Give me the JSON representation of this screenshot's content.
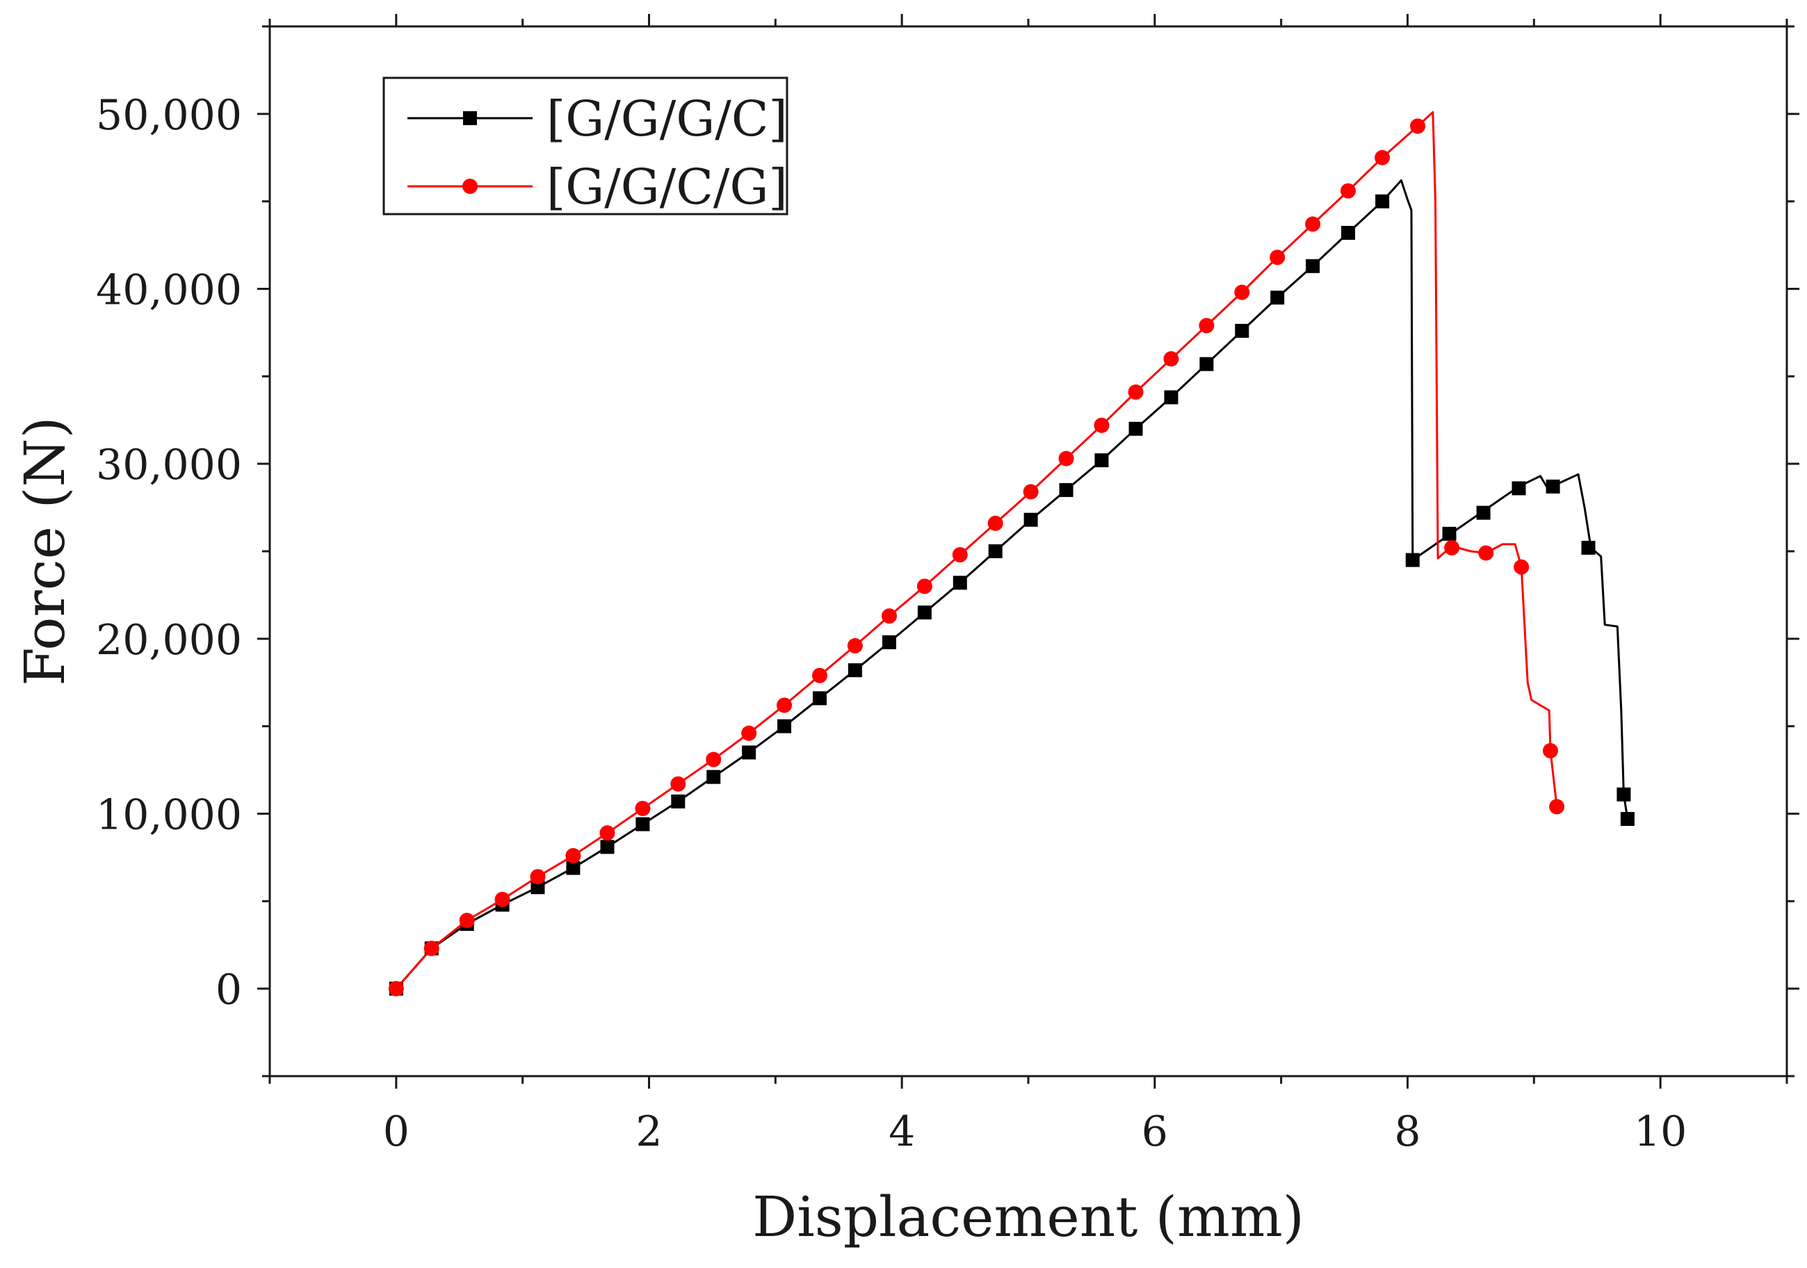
{
  "chart_data": {
    "type": "line",
    "title": "",
    "xlabel": "Displacement (mm)",
    "ylabel": "Force (N)",
    "xlim": [
      -1,
      11
    ],
    "ylim": [
      -5000,
      55000
    ],
    "x_ticks": [
      0,
      2,
      4,
      6,
      8,
      10
    ],
    "x_tick_labels": [
      "0",
      "2",
      "4",
      "6",
      "8",
      "10"
    ],
    "y_ticks": [
      0,
      10000,
      20000,
      30000,
      40000,
      50000
    ],
    "y_tick_labels": [
      "0",
      "10,000",
      "20,000",
      "30,000",
      "40,000",
      "50,000"
    ],
    "legend_position": "top-left",
    "series": [
      {
        "name": "[G/G/G/C]",
        "color": "#000000",
        "marker": "square",
        "line": [
          [
            0,
            0
          ],
          [
            0.28,
            2300
          ],
          [
            0.56,
            3700
          ],
          [
            0.84,
            4800
          ],
          [
            1.12,
            5800
          ],
          [
            1.4,
            6900
          ],
          [
            1.67,
            8100
          ],
          [
            1.95,
            9400
          ],
          [
            2.23,
            10700
          ],
          [
            2.51,
            12100
          ],
          [
            2.79,
            13500
          ],
          [
            3.07,
            15000
          ],
          [
            3.35,
            16600
          ],
          [
            3.63,
            18200
          ],
          [
            3.9,
            19800
          ],
          [
            4.18,
            21500
          ],
          [
            4.46,
            23200
          ],
          [
            4.74,
            25000
          ],
          [
            5.02,
            26800
          ],
          [
            5.3,
            28500
          ],
          [
            5.58,
            30200
          ],
          [
            5.85,
            32000
          ],
          [
            6.13,
            33800
          ],
          [
            6.41,
            35700
          ],
          [
            6.69,
            37600
          ],
          [
            6.97,
            39500
          ],
          [
            7.25,
            41300
          ],
          [
            7.53,
            43200
          ],
          [
            7.8,
            45000
          ],
          [
            7.95,
            46200
          ],
          [
            8.0,
            45100
          ],
          [
            8.03,
            44500
          ],
          [
            8.04,
            24500
          ],
          [
            8.3,
            25800
          ],
          [
            8.6,
            27300
          ],
          [
            8.88,
            28700
          ],
          [
            9.05,
            29300
          ],
          [
            9.1,
            28700
          ],
          [
            9.2,
            28900
          ],
          [
            9.35,
            29400
          ],
          [
            9.4,
            27500
          ],
          [
            9.45,
            25200
          ],
          [
            9.53,
            24700
          ],
          [
            9.56,
            20800
          ],
          [
            9.66,
            20700
          ],
          [
            9.69,
            15900
          ],
          [
            9.71,
            11100
          ],
          [
            9.74,
            9700
          ]
        ],
        "markers": [
          [
            0,
            0
          ],
          [
            0.28,
            2300
          ],
          [
            0.56,
            3700
          ],
          [
            0.84,
            4800
          ],
          [
            1.12,
            5800
          ],
          [
            1.4,
            6900
          ],
          [
            1.67,
            8100
          ],
          [
            1.95,
            9400
          ],
          [
            2.23,
            10700
          ],
          [
            2.51,
            12100
          ],
          [
            2.79,
            13500
          ],
          [
            3.07,
            15000
          ],
          [
            3.35,
            16600
          ],
          [
            3.63,
            18200
          ],
          [
            3.9,
            19800
          ],
          [
            4.18,
            21500
          ],
          [
            4.46,
            23200
          ],
          [
            4.74,
            25000
          ],
          [
            5.02,
            26800
          ],
          [
            5.3,
            28500
          ],
          [
            5.58,
            30200
          ],
          [
            5.85,
            32000
          ],
          [
            6.13,
            33800
          ],
          [
            6.41,
            35700
          ],
          [
            6.69,
            37600
          ],
          [
            6.97,
            39500
          ],
          [
            7.25,
            41300
          ],
          [
            7.53,
            43200
          ],
          [
            7.8,
            45000
          ],
          [
            8.04,
            24500
          ],
          [
            8.33,
            26000
          ],
          [
            8.6,
            27200
          ],
          [
            8.88,
            28600
          ],
          [
            9.15,
            28700
          ],
          [
            9.43,
            25200
          ],
          [
            9.71,
            11100
          ],
          [
            9.74,
            9700
          ]
        ]
      },
      {
        "name": "[G/G/C/G]",
        "color": "#ff0000",
        "marker": "circle",
        "line": [
          [
            0,
            0
          ],
          [
            0.28,
            2300
          ],
          [
            0.56,
            3900
          ],
          [
            0.84,
            5100
          ],
          [
            1.12,
            6400
          ],
          [
            1.4,
            7600
          ],
          [
            1.67,
            8900
          ],
          [
            1.95,
            10300
          ],
          [
            2.23,
            11700
          ],
          [
            2.51,
            13100
          ],
          [
            2.79,
            14600
          ],
          [
            3.07,
            16200
          ],
          [
            3.35,
            17900
          ],
          [
            3.63,
            19600
          ],
          [
            3.9,
            21300
          ],
          [
            4.18,
            23000
          ],
          [
            4.46,
            24800
          ],
          [
            4.74,
            26600
          ],
          [
            5.02,
            28400
          ],
          [
            5.3,
            30300
          ],
          [
            5.58,
            32200
          ],
          [
            5.85,
            34100
          ],
          [
            6.13,
            36000
          ],
          [
            6.41,
            37900
          ],
          [
            6.69,
            39800
          ],
          [
            6.97,
            41800
          ],
          [
            7.25,
            43700
          ],
          [
            7.53,
            45600
          ],
          [
            7.8,
            47500
          ],
          [
            8.08,
            49300
          ],
          [
            8.2,
            50100
          ],
          [
            8.22,
            45000
          ],
          [
            8.24,
            24600
          ],
          [
            8.35,
            25300
          ],
          [
            8.5,
            25000
          ],
          [
            8.62,
            24900
          ],
          [
            8.75,
            25400
          ],
          [
            8.85,
            25400
          ],
          [
            8.9,
            24100
          ],
          [
            8.95,
            17500
          ],
          [
            8.98,
            16500
          ],
          [
            9.05,
            16200
          ],
          [
            9.12,
            15900
          ],
          [
            9.13,
            13600
          ],
          [
            9.18,
            10400
          ],
          [
            9.19,
            10400
          ]
        ],
        "markers": [
          [
            0,
            0
          ],
          [
            0.28,
            2300
          ],
          [
            0.56,
            3900
          ],
          [
            0.84,
            5100
          ],
          [
            1.12,
            6400
          ],
          [
            1.4,
            7600
          ],
          [
            1.67,
            8900
          ],
          [
            1.95,
            10300
          ],
          [
            2.23,
            11700
          ],
          [
            2.51,
            13100
          ],
          [
            2.79,
            14600
          ],
          [
            3.07,
            16200
          ],
          [
            3.35,
            17900
          ],
          [
            3.63,
            19600
          ],
          [
            3.9,
            21300
          ],
          [
            4.18,
            23000
          ],
          [
            4.46,
            24800
          ],
          [
            4.74,
            26600
          ],
          [
            5.02,
            28400
          ],
          [
            5.3,
            30300
          ],
          [
            5.58,
            32200
          ],
          [
            5.85,
            34100
          ],
          [
            6.13,
            36000
          ],
          [
            6.41,
            37900
          ],
          [
            6.69,
            39800
          ],
          [
            6.97,
            41800
          ],
          [
            7.25,
            43700
          ],
          [
            7.53,
            45600
          ],
          [
            7.8,
            47500
          ],
          [
            8.08,
            49300
          ],
          [
            8.35,
            25200
          ],
          [
            8.62,
            24900
          ],
          [
            8.9,
            24100
          ],
          [
            9.13,
            13600
          ],
          [
            9.18,
            10400
          ]
        ]
      }
    ]
  }
}
